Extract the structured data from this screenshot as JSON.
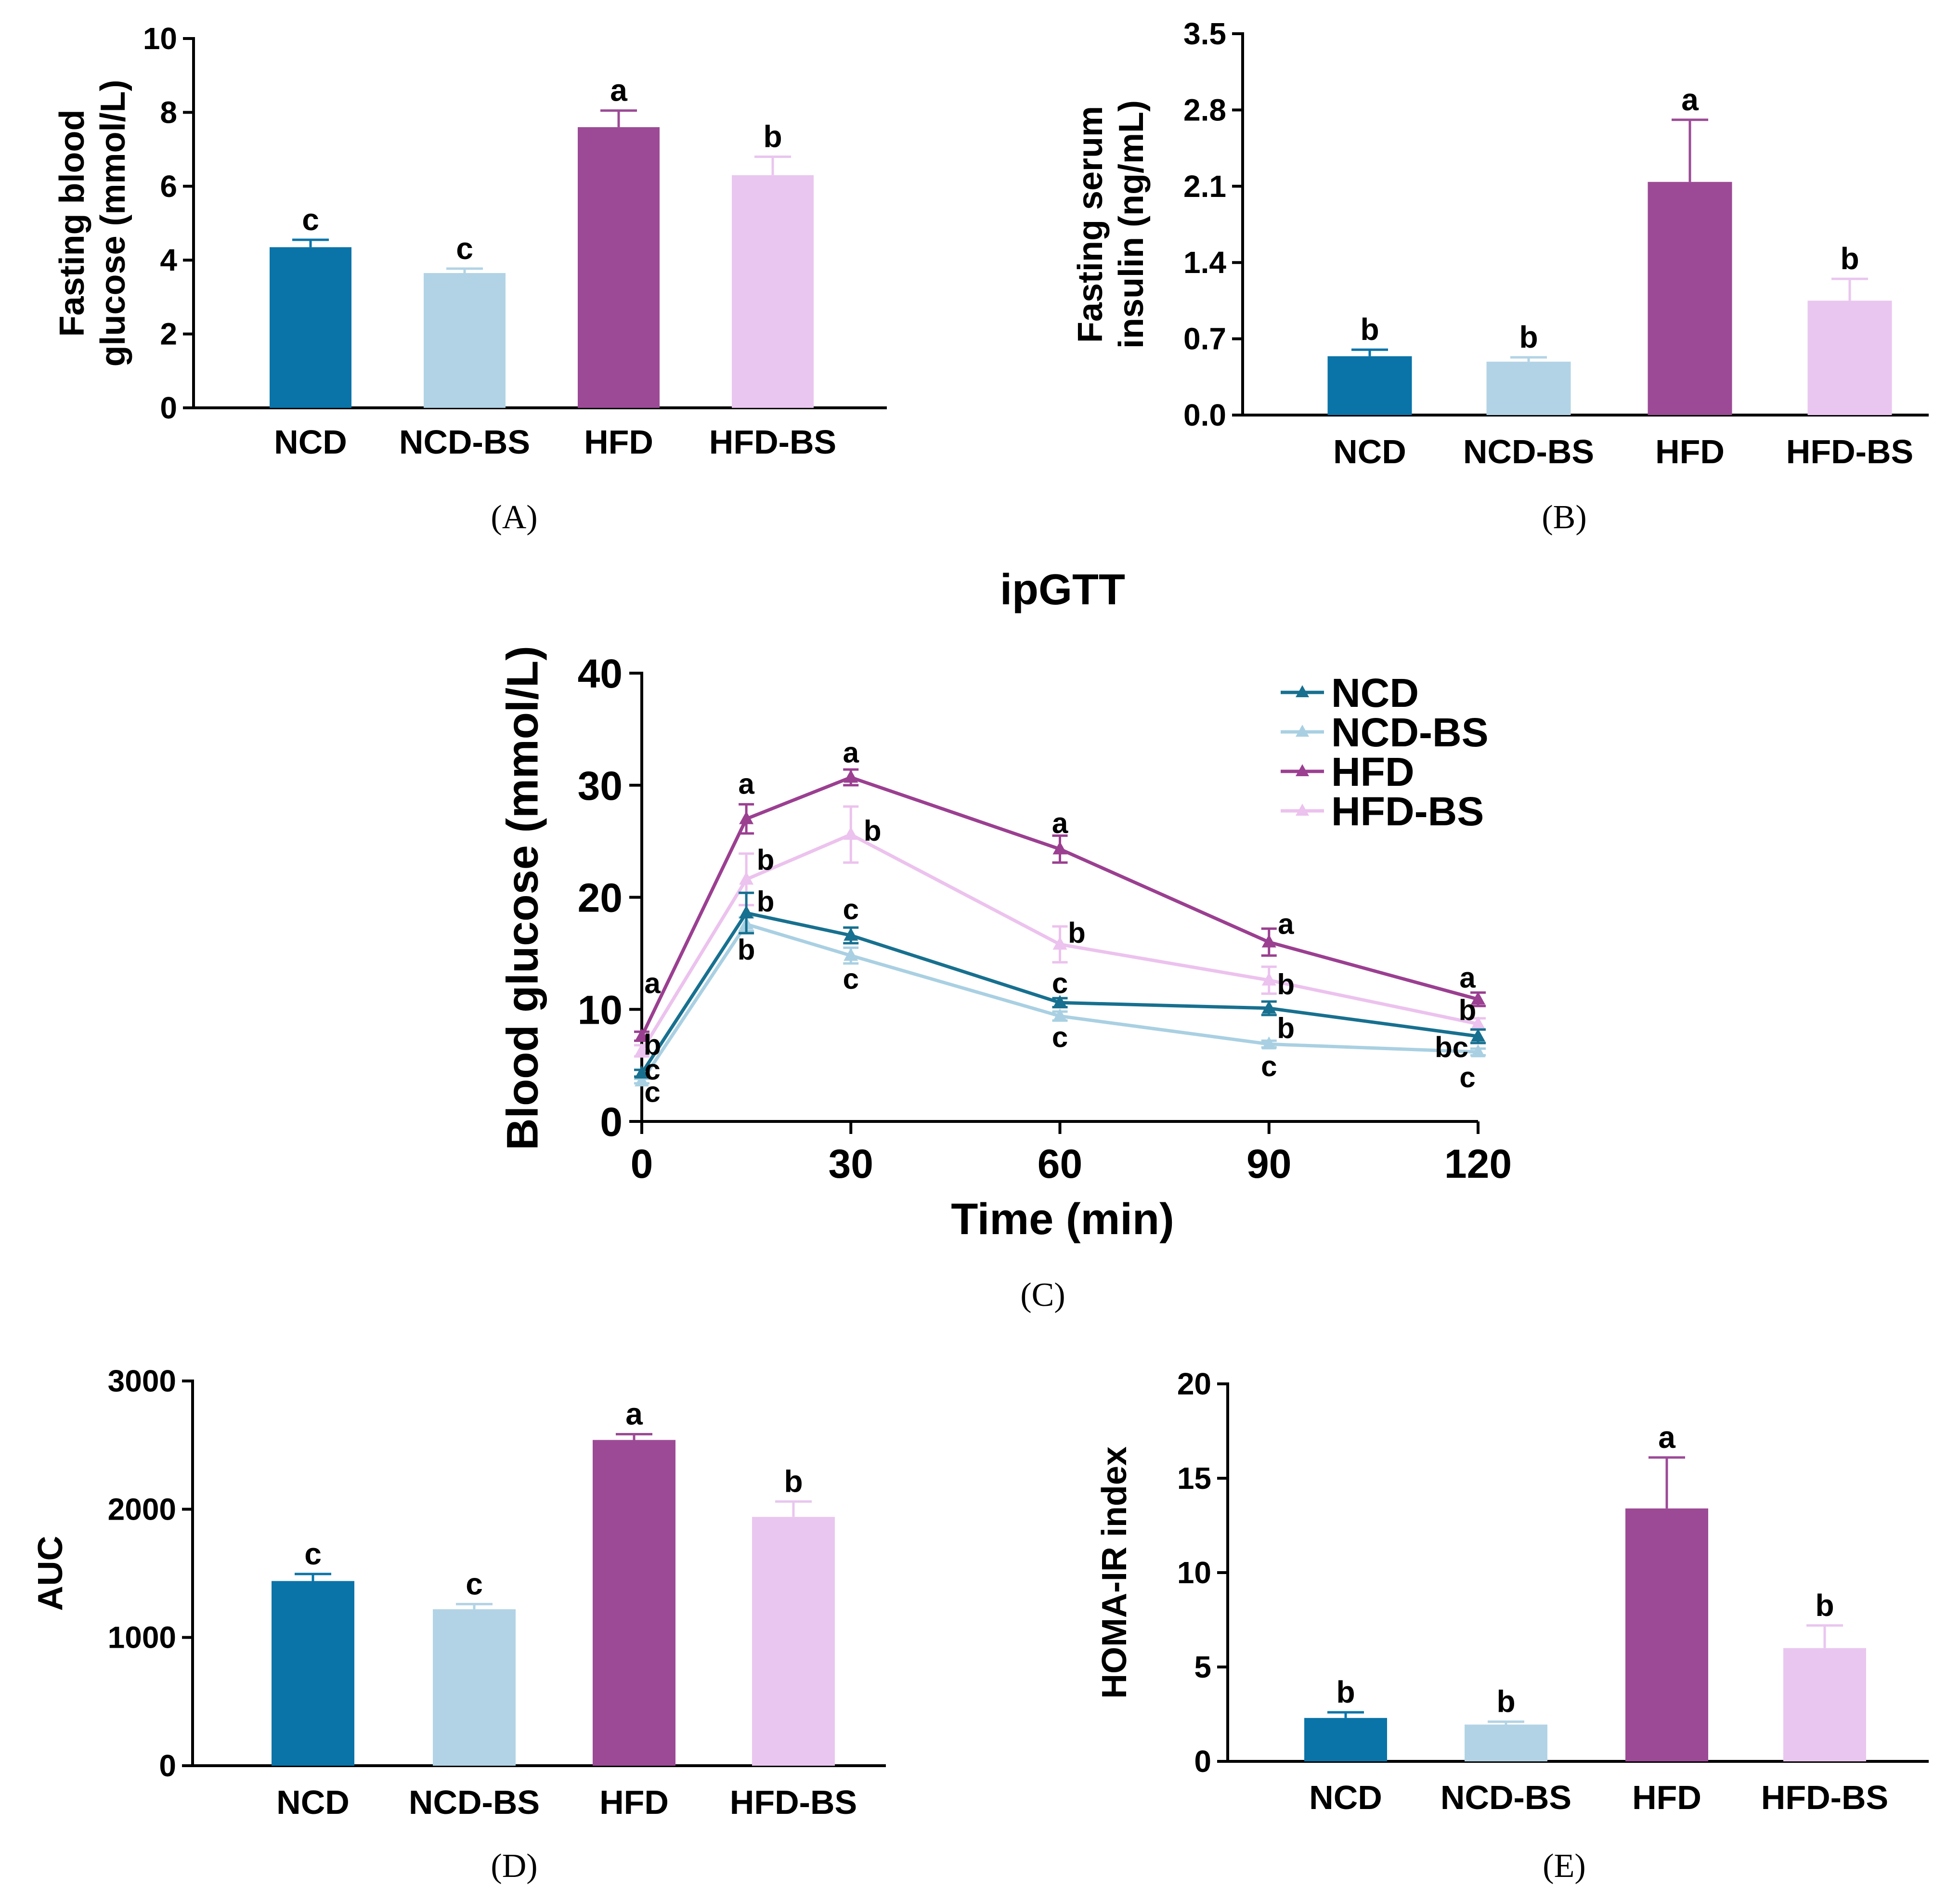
{
  "colors": {
    "NCD": "#0a74a8",
    "NCD-BS": "#b2d3e5",
    "HFD": "#9c4a96",
    "HFD-BS": "#e9c6ef",
    "line_NCD": "#17708f",
    "line_NCD-BS": "#a9d0e2",
    "line_HFD": "#9b3f91",
    "line_HFD-BS": "#ecc2ee"
  },
  "chart_data": [
    {
      "id": "A",
      "type": "bar",
      "panel_label": "(A)",
      "ylabel_lines": [
        "Fasting blood",
        "glucose (mmol/L)"
      ],
      "categories": [
        "NCD",
        "NCD-BS",
        "HFD",
        "HFD-BS"
      ],
      "values": [
        4.35,
        3.65,
        7.6,
        6.3
      ],
      "errors": [
        0.2,
        0.12,
        0.45,
        0.5
      ],
      "significance": [
        "c",
        "c",
        "a",
        "b"
      ],
      "ylim": [
        0,
        10
      ],
      "yticks": [
        "0",
        "2",
        "4",
        "6",
        "8",
        "10"
      ],
      "ytick_values": [
        0,
        2,
        4,
        6,
        8,
        10
      ]
    },
    {
      "id": "B",
      "type": "bar",
      "panel_label": "(B)",
      "ylabel_lines": [
        "Fasting serum",
        "insulin (ng/mL)"
      ],
      "categories": [
        "NCD",
        "NCD-BS",
        "HFD",
        "HFD-BS"
      ],
      "values": [
        0.54,
        0.49,
        2.14,
        1.05
      ],
      "errors": [
        0.06,
        0.04,
        0.57,
        0.2
      ],
      "significance": [
        "b",
        "b",
        "a",
        "b"
      ],
      "ylim": [
        0,
        3.5
      ],
      "yticks": [
        "0.0",
        "0.7",
        "1.4",
        "2.1",
        "2.8",
        "3.5"
      ],
      "ytick_values": [
        0,
        0.7,
        1.4,
        2.1,
        2.8,
        3.5
      ]
    },
    {
      "id": "C",
      "type": "line",
      "panel_label": "(C)",
      "title": "ipGTT",
      "xlabel": "Time (min)",
      "ylabel": "Blood glucose (mmol/L)",
      "x": [
        0,
        15,
        30,
        60,
        90,
        120
      ],
      "xticks": [
        "0",
        "30",
        "60",
        "90",
        "120"
      ],
      "xtick_values": [
        0,
        30,
        60,
        90,
        120
      ],
      "yticks": [
        "0",
        "10",
        "20",
        "30",
        "40"
      ],
      "ytick_values": [
        0,
        10,
        20,
        30,
        40
      ],
      "xlim": [
        0,
        120
      ],
      "ylim": [
        0,
        40
      ],
      "legend": [
        "NCD",
        "NCD-BS",
        "HFD",
        "HFD-BS"
      ],
      "series": [
        {
          "name": "NCD",
          "values": [
            4.3,
            18.6,
            16.6,
            10.6,
            10.1,
            7.6
          ],
          "errors": [
            0.3,
            1.8,
            0.7,
            0.4,
            0.6,
            0.6
          ]
        },
        {
          "name": "NCD-BS",
          "values": [
            3.6,
            17.6,
            14.8,
            9.4,
            6.9,
            6.2
          ],
          "errors": [
            0.2,
            0.6,
            0.7,
            0.4,
            0.3,
            0.3
          ]
        },
        {
          "name": "HFD",
          "values": [
            7.6,
            27.0,
            30.7,
            24.3,
            16.0,
            10.9
          ],
          "errors": [
            0.4,
            1.3,
            0.7,
            1.2,
            1.2,
            0.6
          ]
        },
        {
          "name": "HFD-BS",
          "values": [
            6.3,
            21.6,
            25.6,
            15.8,
            12.6,
            8.7
          ],
          "errors": [
            0.5,
            2.3,
            2.5,
            1.6,
            1.2,
            0.5
          ]
        }
      ],
      "annotations": [
        {
          "text": "a",
          "x": 0,
          "y": 12.3
        },
        {
          "text": "b",
          "x": 0,
          "y": 6.8
        },
        {
          "text": "c",
          "x": 0,
          "y": 4.6
        },
        {
          "text": "c",
          "x": 0,
          "y": 2.6
        },
        {
          "text": "a",
          "x": 15,
          "y": 30.1
        },
        {
          "text": "b",
          "x": 15,
          "y": 23.3
        },
        {
          "text": "b",
          "x": 15,
          "y": 19.6
        },
        {
          "text": "b",
          "x": 15,
          "y": 15.3
        },
        {
          "text": "a",
          "x": 30,
          "y": 32.9
        },
        {
          "text": "b",
          "x": 30,
          "y": 25.9
        },
        {
          "text": "c",
          "x": 30,
          "y": 18.9
        },
        {
          "text": "c",
          "x": 30,
          "y": 12.7
        },
        {
          "text": "a",
          "x": 60,
          "y": 26.6
        },
        {
          "text": "b",
          "x": 60,
          "y": 16.8
        },
        {
          "text": "c",
          "x": 60,
          "y": 12.3
        },
        {
          "text": "c",
          "x": 60,
          "y": 7.5
        },
        {
          "text": "a",
          "x": 90,
          "y": 17.6
        },
        {
          "text": "b",
          "x": 90,
          "y": 12.2
        },
        {
          "text": "b",
          "x": 90,
          "y": 8.3
        },
        {
          "text": "c",
          "x": 90,
          "y": 4.9
        },
        {
          "text": "a",
          "x": 120,
          "y": 12.8
        },
        {
          "text": "b",
          "x": 120,
          "y": 9.9
        },
        {
          "text": "bc",
          "x": 120,
          "y": 6.6
        },
        {
          "text": "c",
          "x": 120,
          "y": 3.9
        }
      ]
    },
    {
      "id": "D",
      "type": "bar",
      "panel_label": "(D)",
      "ylabel_lines": [
        "AUC"
      ],
      "categories": [
        "NCD",
        "NCD-BS",
        "HFD",
        "HFD-BS"
      ],
      "values": [
        1440,
        1220,
        2540,
        1940
      ],
      "errors": [
        55,
        40,
        45,
        120
      ],
      "significance": [
        "c",
        "c",
        "a",
        "b"
      ],
      "ylim": [
        0,
        3000
      ],
      "yticks": [
        "0",
        "1000",
        "2000",
        "3000"
      ],
      "ytick_values": [
        0,
        1000,
        2000,
        3000
      ]
    },
    {
      "id": "E",
      "type": "bar",
      "panel_label": "(E)",
      "ylabel_lines": [
        "HOMA-IR index"
      ],
      "categories": [
        "NCD",
        "NCD-BS",
        "HFD",
        "HFD-BS"
      ],
      "values": [
        2.3,
        1.95,
        13.4,
        6.0
      ],
      "errors": [
        0.3,
        0.15,
        2.7,
        1.2
      ],
      "significance": [
        "b",
        "b",
        "a",
        "b"
      ],
      "ylim": [
        0,
        20
      ],
      "yticks": [
        "0",
        "5",
        "10",
        "15",
        "20"
      ],
      "ytick_values": [
        0,
        5,
        10,
        15,
        20
      ]
    }
  ]
}
